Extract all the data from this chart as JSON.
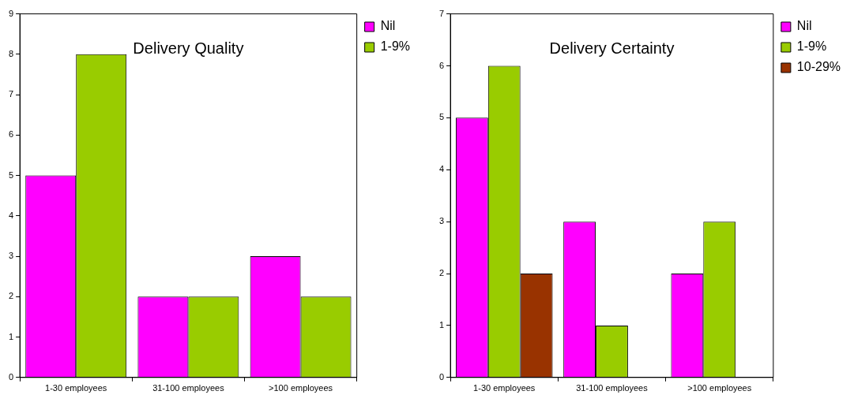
{
  "chart_data": [
    {
      "type": "bar",
      "title": "Delivery Quality",
      "categories": [
        "1-30 employees",
        "31-100 employees",
        ">100 employees"
      ],
      "series": [
        {
          "name": "Nil",
          "color": "#ff00ff",
          "values": [
            5,
            2,
            3
          ]
        },
        {
          "name": "1-9%",
          "color": "#99cc00",
          "values": [
            8,
            2,
            2
          ]
        }
      ],
      "ylim": [
        0,
        9
      ],
      "yticks": [
        0,
        1,
        2,
        3,
        4,
        5,
        6,
        7,
        8,
        9
      ],
      "grid": false,
      "legend": "right"
    },
    {
      "type": "bar",
      "title": "Delivery Certainty",
      "categories": [
        "1-30 employees",
        "31-100 employees",
        ">100 employees"
      ],
      "series": [
        {
          "name": "Nil",
          "color": "#ff00ff",
          "values": [
            5,
            3,
            2
          ]
        },
        {
          "name": "1-9%",
          "color": "#99cc00",
          "values": [
            6,
            1,
            3
          ]
        },
        {
          "name": "10-29%",
          "color": "#993300",
          "values": [
            2,
            null,
            null
          ]
        }
      ],
      "ylim": [
        0,
        7
      ],
      "yticks": [
        0,
        1,
        2,
        3,
        4,
        5,
        6,
        7
      ],
      "grid": false,
      "legend": "right"
    }
  ]
}
